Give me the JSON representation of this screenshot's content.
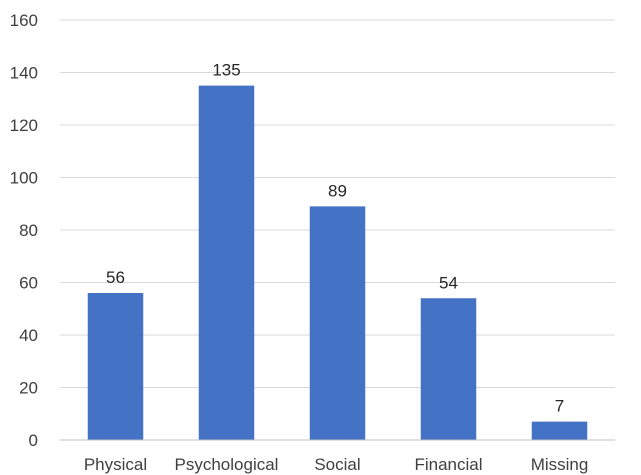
{
  "chart_data": {
    "type": "bar",
    "title": "",
    "xlabel": "",
    "ylabel": "",
    "categories": [
      "Physical",
      "Psychological",
      "Social",
      "Financial",
      "Missing"
    ],
    "values": [
      56,
      135,
      89,
      54,
      7
    ],
    "data_labels": [
      "56",
      "135",
      "89",
      "54",
      "7"
    ],
    "ylim": [
      0,
      160
    ],
    "yticks": [
      0,
      20,
      40,
      60,
      80,
      100,
      120,
      140,
      160
    ],
    "ytick_labels": [
      "0",
      "20",
      "40",
      "60",
      "80",
      "100",
      "120",
      "140",
      "160"
    ],
    "grid": true,
    "legend": "none",
    "bar_color": "#4472c4",
    "grid_color": "#d9d9d9"
  }
}
